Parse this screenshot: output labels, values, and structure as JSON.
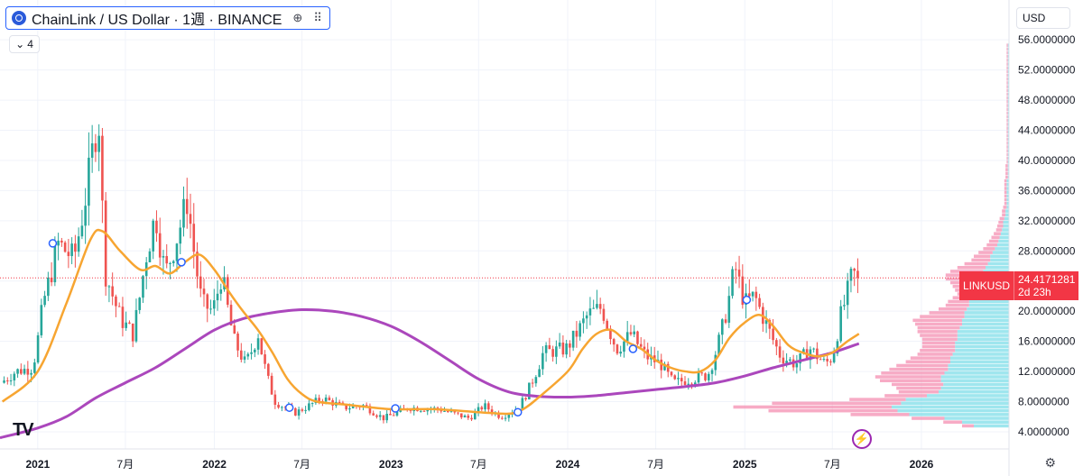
{
  "header": {
    "symbol_title": "ChainLink / US Dollar · 1週 · BINANCE",
    "logo_icon": "chainlink-logo-icon",
    "collapse_label": "4",
    "currency": "USD"
  },
  "price_tag": {
    "ticker": "LINKUSD",
    "price": "24.4171281",
    "countdown": "2d 23h"
  },
  "colors": {
    "up": "#26a69a",
    "down": "#ef5350",
    "ma_short": "#f7a531",
    "ma_long": "#ab47bc",
    "vp_up": "#7fdde8",
    "vp_down": "#f48fb1",
    "accent": "#2962ff"
  },
  "chart_data": {
    "type": "candlestick",
    "interval": "1週",
    "exchange": "BINANCE",
    "y_axis": {
      "ticks": [
        "4.0000000",
        "8.0000000",
        "12.0000000",
        "16.0000000",
        "20.0000000",
        "24.0000000",
        "28.0000000",
        "32.0000000",
        "36.0000000",
        "40.0000000",
        "44.0000000",
        "48.0000000",
        "52.0000000",
        "56.0000000"
      ],
      "tick_values": [
        4,
        8,
        12,
        16,
        20,
        24,
        28,
        32,
        36,
        40,
        44,
        48,
        52,
        56
      ],
      "ylim": [
        2.2,
        56.5
      ]
    },
    "x_axis": {
      "ticks": [
        "2021",
        "7月",
        "2022",
        "7月",
        "2023",
        "7月",
        "2024",
        "7月",
        "2025",
        "7月",
        "2026"
      ],
      "tick_dates": [
        "2021-01-01",
        "2021-07-01",
        "2022-01-01",
        "2022-07-01",
        "2023-01-01",
        "2023-07-01",
        "2024-01-01",
        "2024-07-01",
        "2025-01-01",
        "2025-07-01",
        "2026-01-01"
      ],
      "xlim": [
        "2020-10-15",
        "2026-07-01"
      ],
      "bold_ticks": [
        "2021",
        "2022",
        "2023",
        "2024",
        "2025",
        "2026"
      ]
    },
    "last_price": 24.4171281,
    "price_anchors": [
      [
        "2020-10-20",
        10.5
      ],
      [
        "2020-11-20",
        12.0
      ],
      [
        "2020-12-25",
        12.5
      ],
      [
        "2021-01-15",
        21.0
      ],
      [
        "2021-02-15",
        29.0
      ],
      [
        "2021-03-20",
        27.0
      ],
      [
        "2021-04-10",
        34.0
      ],
      [
        "2021-05-10",
        47.0
      ],
      [
        "2021-05-25",
        25.0
      ],
      [
        "2021-06-25",
        19.0
      ],
      [
        "2021-07-20",
        17.0
      ],
      [
        "2021-08-15",
        27.0
      ],
      [
        "2021-09-05",
        33.0
      ],
      [
        "2021-09-25",
        25.0
      ],
      [
        "2021-10-20",
        30.0
      ],
      [
        "2021-11-10",
        35.0
      ],
      [
        "2021-12-10",
        21.0
      ],
      [
        "2022-01-01",
        20.0
      ],
      [
        "2022-01-20",
        25.0
      ],
      [
        "2022-02-15",
        16.0
      ],
      [
        "2022-03-10",
        13.0
      ],
      [
        "2022-04-05",
        17.0
      ],
      [
        "2022-05-10",
        8.0
      ],
      [
        "2022-06-20",
        6.5
      ],
      [
        "2022-08-15",
        8.5
      ],
      [
        "2022-10-01",
        7.2
      ],
      [
        "2022-11-10",
        7.5
      ],
      [
        "2022-12-20",
        5.8
      ],
      [
        "2023-02-10",
        7.2
      ],
      [
        "2023-04-15",
        7.0
      ],
      [
        "2023-06-15",
        5.8
      ],
      [
        "2023-07-15",
        7.5
      ],
      [
        "2023-08-20",
        6.0
      ],
      [
        "2023-09-25",
        7.2
      ],
      [
        "2023-10-25",
        11.0
      ],
      [
        "2023-11-15",
        14.5
      ],
      [
        "2024-01-01",
        15.0
      ],
      [
        "2024-02-15",
        19.5
      ],
      [
        "2024-03-15",
        20.5
      ],
      [
        "2024-04-15",
        15.0
      ],
      [
        "2024-05-15",
        17.0
      ],
      [
        "2024-06-15",
        14.0
      ],
      [
        "2024-07-15",
        13.0
      ],
      [
        "2024-08-10",
        10.5
      ],
      [
        "2024-09-15",
        11.0
      ],
      [
        "2024-10-20",
        11.5
      ],
      [
        "2024-11-20",
        18.0
      ],
      [
        "2024-12-15",
        26.0
      ],
      [
        "2025-01-05",
        21.0
      ],
      [
        "2025-01-25",
        22.0
      ],
      [
        "2025-02-20",
        18.0
      ],
      [
        "2025-03-20",
        14.0
      ],
      [
        "2025-04-20",
        13.0
      ],
      [
        "2025-05-20",
        15.0
      ],
      [
        "2025-06-20",
        13.0
      ],
      [
        "2025-07-05",
        14.0
      ],
      [
        "2025-07-20",
        19.0
      ],
      [
        "2025-08-05",
        22.5
      ],
      [
        "2025-08-15",
        25.0
      ],
      [
        "2025-08-25",
        24.4
      ]
    ],
    "ma_short": [
      [
        "2020-10-20",
        8.0
      ],
      [
        "2021-01-01",
        12.0
      ],
      [
        "2021-03-01",
        21.0
      ],
      [
        "2021-04-20",
        29.5
      ],
      [
        "2021-05-15",
        30.6
      ],
      [
        "2021-06-20",
        28.0
      ],
      [
        "2021-08-01",
        25.5
      ],
      [
        "2021-09-01",
        26.0
      ],
      [
        "2021-10-01",
        25.0
      ],
      [
        "2021-11-01",
        26.5
      ],
      [
        "2021-12-01",
        27.5
      ],
      [
        "2022-01-01",
        25.5
      ],
      [
        "2022-02-01",
        22.5
      ],
      [
        "2022-03-01",
        20.0
      ],
      [
        "2022-04-01",
        17.5
      ],
      [
        "2022-05-01",
        14.5
      ],
      [
        "2022-06-01",
        11.0
      ],
      [
        "2022-07-01",
        9.0
      ],
      [
        "2022-08-01",
        8.0
      ],
      [
        "2022-10-01",
        7.6
      ],
      [
        "2023-01-01",
        7.0
      ],
      [
        "2023-04-01",
        7.0
      ],
      [
        "2023-07-01",
        6.6
      ],
      [
        "2023-09-01",
        6.4
      ],
      [
        "2023-10-01",
        7.0
      ],
      [
        "2023-11-01",
        8.5
      ],
      [
        "2024-01-01",
        12.0
      ],
      [
        "2024-02-01",
        15.0
      ],
      [
        "2024-03-01",
        17.0
      ],
      [
        "2024-04-01",
        17.5
      ],
      [
        "2024-05-01",
        16.0
      ],
      [
        "2024-06-01",
        15.0
      ],
      [
        "2024-07-01",
        13.5
      ],
      [
        "2024-08-01",
        12.5
      ],
      [
        "2024-09-01",
        12.0
      ],
      [
        "2024-10-01",
        12.0
      ],
      [
        "2024-11-01",
        13.5
      ],
      [
        "2024-12-01",
        16.5
      ],
      [
        "2025-01-01",
        18.5
      ],
      [
        "2025-02-01",
        19.5
      ],
      [
        "2025-03-01",
        18.0
      ],
      [
        "2025-04-01",
        15.5
      ],
      [
        "2025-05-01",
        14.5
      ],
      [
        "2025-06-01",
        14.0
      ],
      [
        "2025-07-01",
        14.5
      ],
      [
        "2025-08-01",
        16.0
      ],
      [
        "2025-08-25",
        17.0
      ]
    ],
    "ma_long": [
      [
        "2020-10-15",
        3.2
      ],
      [
        "2021-01-01",
        4.5
      ],
      [
        "2021-03-01",
        6.0
      ],
      [
        "2021-05-01",
        8.5
      ],
      [
        "2021-07-01",
        10.5
      ],
      [
        "2021-09-01",
        12.5
      ],
      [
        "2021-11-01",
        15.0
      ],
      [
        "2022-01-01",
        17.5
      ],
      [
        "2022-03-01",
        19.0
      ],
      [
        "2022-05-01",
        19.8
      ],
      [
        "2022-07-01",
        20.2
      ],
      [
        "2022-09-01",
        20.0
      ],
      [
        "2022-11-01",
        19.3
      ],
      [
        "2023-01-01",
        18.0
      ],
      [
        "2023-03-01",
        16.0
      ],
      [
        "2023-05-01",
        13.5
      ],
      [
        "2023-07-01",
        11.0
      ],
      [
        "2023-09-01",
        9.3
      ],
      [
        "2023-11-01",
        8.7
      ],
      [
        "2024-01-01",
        8.6
      ],
      [
        "2024-03-01",
        8.8
      ],
      [
        "2024-05-01",
        9.2
      ],
      [
        "2024-07-01",
        9.6
      ],
      [
        "2024-09-01",
        10.0
      ],
      [
        "2024-11-01",
        10.5
      ],
      [
        "2025-01-01",
        11.4
      ],
      [
        "2025-03-01",
        12.5
      ],
      [
        "2025-05-01",
        13.5
      ],
      [
        "2025-07-01",
        14.5
      ],
      [
        "2025-08-25",
        15.7
      ]
    ],
    "markers": [
      {
        "date": "2021-02-01",
        "value": 29.0
      },
      {
        "date": "2021-10-25",
        "value": 26.5
      },
      {
        "date": "2022-06-05",
        "value": 7.2
      },
      {
        "date": "2023-01-10",
        "value": 7.1
      },
      {
        "date": "2023-09-20",
        "value": 6.6
      },
      {
        "date": "2024-05-15",
        "value": 15.0
      },
      {
        "date": "2025-01-05",
        "value": 21.5
      }
    ],
    "volume_profile": {
      "bins_from": 4.5,
      "bin_size": 0.5,
      "up_volumes": [
        30,
        40,
        55,
        85,
        95,
        100,
        92,
        88,
        70,
        60,
        58,
        56,
        58,
        58,
        55,
        52,
        52,
        50,
        50,
        48,
        46,
        46,
        46,
        44,
        44,
        44,
        42,
        40,
        40,
        38,
        38,
        36,
        34,
        34,
        32,
        30,
        30,
        28,
        26,
        26,
        24,
        22,
        20,
        18,
        16,
        16,
        14,
        12,
        10,
        9,
        8,
        7,
        6,
        5,
        5,
        4,
        3,
        3,
        2,
        2,
        2,
        2,
        2,
        2,
        2,
        2,
        1,
        1,
        1,
        1,
        1,
        1,
        1,
        1,
        1,
        1,
        1,
        1,
        1,
        1,
        1,
        1,
        1,
        1,
        1,
        1,
        1,
        1,
        1,
        1,
        1,
        1,
        1,
        1,
        1,
        1,
        1,
        1,
        1,
        1,
        1,
        1
      ],
      "down_volumes": [
        10,
        16,
        28,
        50,
        110,
        135,
        110,
        48,
        36,
        34,
        38,
        44,
        52,
        56,
        54,
        50,
        44,
        38,
        34,
        30,
        30,
        28,
        28,
        30,
        32,
        34,
        36,
        40,
        42,
        38,
        30,
        24,
        20,
        18,
        16,
        14,
        16,
        20,
        24,
        28,
        30,
        28,
        24,
        20,
        16,
        14,
        12,
        10,
        9,
        8,
        7,
        6,
        5,
        5,
        4,
        4,
        3,
        3,
        3,
        2,
        2,
        2,
        2,
        2,
        2,
        2,
        2,
        2,
        2,
        2,
        1,
        1,
        1,
        1,
        1,
        1,
        1,
        1,
        1,
        1,
        1,
        1,
        1,
        1,
        1,
        1,
        1,
        1,
        1,
        1,
        1,
        1,
        1,
        1,
        1,
        1,
        1,
        1,
        1,
        1,
        1,
        1
      ]
    }
  }
}
